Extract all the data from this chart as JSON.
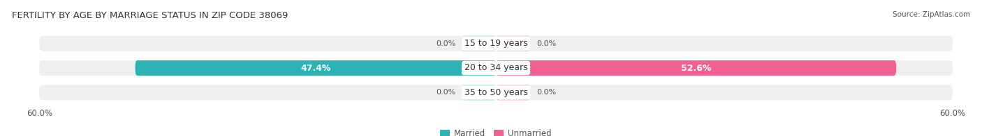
{
  "title": "FERTILITY BY AGE BY MARRIAGE STATUS IN ZIP CODE 38069",
  "source": "Source: ZipAtlas.com",
  "categories": [
    "15 to 19 years",
    "20 to 34 years",
    "35 to 50 years"
  ],
  "married_values": [
    0.0,
    47.4,
    0.0
  ],
  "unmarried_values": [
    0.0,
    52.6,
    0.0
  ],
  "xlim": 60.0,
  "married_color": "#2db3b3",
  "married_small_color": "#7dd8d8",
  "unmarried_color": "#f06090",
  "unmarried_small_color": "#f0a8c0",
  "married_label": "Married",
  "unmarried_label": "Unmarried",
  "row_bg_color": "#efefef",
  "bar_height": 0.62,
  "title_fontsize": 9.5,
  "label_fontsize": 8.0,
  "tick_fontsize": 8.5,
  "source_fontsize": 7.5,
  "category_fontsize": 9.0,
  "bg_color": "#ffffff",
  "text_color": "#555555",
  "value_inside_color": "#ffffff",
  "value_outside_color": "#555555",
  "small_bar_width": 4.5
}
